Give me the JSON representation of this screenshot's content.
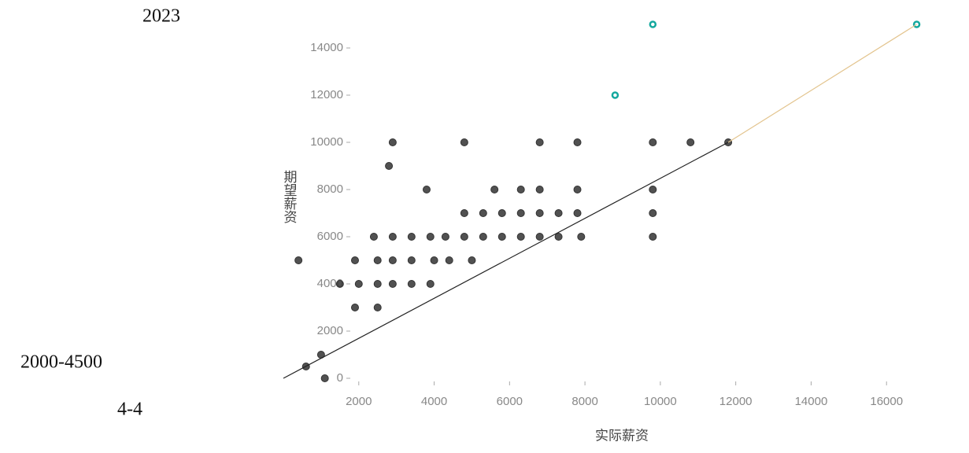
{
  "sidebar": [
    "2023",
    "2000-4500",
    "4-4"
  ],
  "chart_data": {
    "type": "scatter",
    "x_label": "实际薪资",
    "y_label": "期望薪资",
    "xlim": [
      0,
      18000
    ],
    "ylim": [
      0,
      16000
    ],
    "xticks": [
      2000,
      4000,
      6000,
      8000,
      10000,
      12000,
      14000,
      16000
    ],
    "yticks": [
      0,
      2000,
      4000,
      6000,
      8000,
      10000,
      12000,
      14000
    ],
    "series": [
      {
        "type": "scatter",
        "color": "#333333",
        "hollow": false,
        "x": [
          2900,
          4800,
          6800,
          7800,
          9800,
          10800,
          11800,
          2800,
          3800,
          5600,
          6300,
          6800,
          7800,
          9800,
          4800,
          5300,
          5800,
          6300,
          6800,
          7300,
          7800,
          9800,
          2400,
          2900,
          3400,
          3900,
          4300,
          4800,
          5300,
          5800,
          6300,
          6800,
          7300,
          7900,
          9800,
          400,
          1900,
          2500,
          2900,
          3400,
          4000,
          4400,
          5000,
          1500,
          2000,
          2500,
          2900,
          3400,
          3900,
          1900,
          2500,
          1000,
          600,
          1100
        ],
        "values": [
          10000,
          10000,
          10000,
          10000,
          10000,
          10000,
          10000,
          9000,
          8000,
          8000,
          8000,
          8000,
          8000,
          8000,
          7000,
          7000,
          7000,
          7000,
          7000,
          7000,
          7000,
          7000,
          6000,
          6000,
          6000,
          6000,
          6000,
          6000,
          6000,
          6000,
          6000,
          6000,
          6000,
          6000,
          6000,
          5000,
          5000,
          5000,
          5000,
          5000,
          5000,
          5000,
          5000,
          4000,
          4000,
          4000,
          4000,
          4000,
          4000,
          3000,
          3000,
          1000,
          500,
          0
        ]
      },
      {
        "type": "scatter",
        "color": "#13a89e",
        "hollow": true,
        "x": [
          8800,
          9800,
          16800
        ],
        "values": [
          12000,
          15000,
          15000
        ]
      },
      {
        "type": "line",
        "color": "#222222",
        "x": [
          0,
          11800
        ],
        "values": [
          0,
          10000
        ]
      },
      {
        "type": "line",
        "color": "#e3c48e",
        "x": [
          11800,
          16800
        ],
        "values": [
          10000,
          15000
        ]
      }
    ]
  }
}
